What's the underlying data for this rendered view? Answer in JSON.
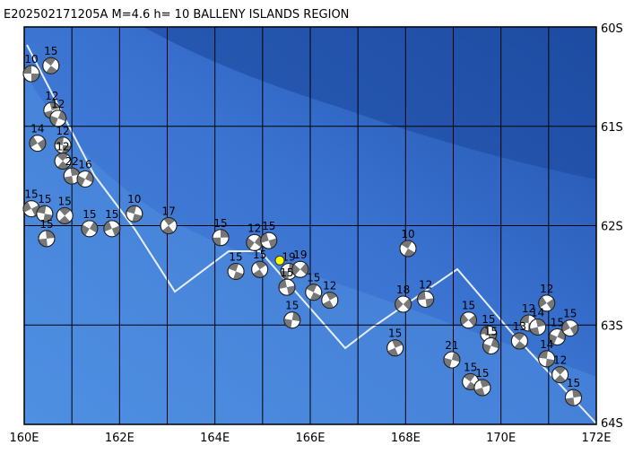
{
  "title": "E202502171205A M=4.6 h= 10 BALLENY ISLANDS REGION",
  "map": {
    "lonlim": [
      160,
      172
    ],
    "latlim": [
      60,
      64
    ],
    "lonticks": [
      {
        "value": 160,
        "label": "160E"
      },
      {
        "value": 162,
        "label": "162E"
      },
      {
        "value": 164,
        "label": "164E"
      },
      {
        "value": 166,
        "label": "166E"
      },
      {
        "value": 168,
        "label": "168E"
      },
      {
        "value": 170,
        "label": "170E"
      },
      {
        "value": 172,
        "label": "172E"
      }
    ],
    "latticks": [
      {
        "value": 60,
        "label": "60S"
      },
      {
        "value": 61,
        "label": "61S"
      },
      {
        "value": 62,
        "label": "62S"
      },
      {
        "value": 63,
        "label": "63S"
      },
      {
        "value": 64,
        "label": "64S"
      }
    ],
    "grid_lon": [
      161,
      163,
      165,
      167,
      169,
      171
    ],
    "events": [
      {
        "lon": 160.15,
        "lat": 60.47,
        "depth": "10"
      },
      {
        "lon": 160.56,
        "lat": 60.39,
        "depth": "15"
      },
      {
        "lon": 160.58,
        "lat": 60.84,
        "depth": "12"
      },
      {
        "lon": 160.71,
        "lat": 60.92,
        "depth": "12"
      },
      {
        "lon": 160.28,
        "lat": 61.17,
        "depth": "14"
      },
      {
        "lon": 160.81,
        "lat": 61.19,
        "depth": "12"
      },
      {
        "lon": 160.81,
        "lat": 61.35,
        "depth": "12"
      },
      {
        "lon": 161.0,
        "lat": 61.5,
        "depth": "22"
      },
      {
        "lon": 161.28,
        "lat": 61.53,
        "depth": "16"
      },
      {
        "lon": 160.15,
        "lat": 61.83,
        "depth": "15"
      },
      {
        "lon": 160.43,
        "lat": 61.88,
        "depth": "15"
      },
      {
        "lon": 160.85,
        "lat": 61.9,
        "depth": "15"
      },
      {
        "lon": 160.47,
        "lat": 62.13,
        "depth": "15"
      },
      {
        "lon": 161.37,
        "lat": 62.03,
        "depth": "15"
      },
      {
        "lon": 161.84,
        "lat": 62.03,
        "depth": "15"
      },
      {
        "lon": 162.31,
        "lat": 61.88,
        "depth": "10"
      },
      {
        "lon": 163.03,
        "lat": 62.0,
        "depth": "17"
      },
      {
        "lon": 164.12,
        "lat": 62.12,
        "depth": "15"
      },
      {
        "lon": 164.83,
        "lat": 62.17,
        "depth": "12"
      },
      {
        "lon": 165.13,
        "lat": 62.15,
        "depth": "15"
      },
      {
        "lon": 164.44,
        "lat": 62.46,
        "depth": "15"
      },
      {
        "lon": 164.94,
        "lat": 62.44,
        "depth": "15"
      },
      {
        "lon": 165.55,
        "lat": 62.46,
        "depth": "19"
      },
      {
        "lon": 165.79,
        "lat": 62.44,
        "depth": "19"
      },
      {
        "lon": 165.51,
        "lat": 62.62,
        "depth": "15"
      },
      {
        "lon": 166.07,
        "lat": 62.67,
        "depth": "15"
      },
      {
        "lon": 166.41,
        "lat": 62.75,
        "depth": "12"
      },
      {
        "lon": 165.62,
        "lat": 62.95,
        "depth": "15"
      },
      {
        "lon": 167.95,
        "lat": 62.79,
        "depth": "18"
      },
      {
        "lon": 168.42,
        "lat": 62.74,
        "depth": "12"
      },
      {
        "lon": 168.05,
        "lat": 62.23,
        "depth": "10"
      },
      {
        "lon": 167.78,
        "lat": 63.23,
        "depth": "15"
      },
      {
        "lon": 168.97,
        "lat": 63.35,
        "depth": "21"
      },
      {
        "lon": 169.32,
        "lat": 62.95,
        "depth": "15"
      },
      {
        "lon": 169.74,
        "lat": 63.09,
        "depth": "15"
      },
      {
        "lon": 169.36,
        "lat": 63.57,
        "depth": "15"
      },
      {
        "lon": 169.61,
        "lat": 63.63,
        "depth": "15"
      },
      {
        "lon": 169.79,
        "lat": 63.21,
        "depth": "15"
      },
      {
        "lon": 170.96,
        "lat": 62.78,
        "depth": "12"
      },
      {
        "lon": 170.58,
        "lat": 62.98,
        "depth": "12"
      },
      {
        "lon": 170.39,
        "lat": 63.16,
        "depth": "13"
      },
      {
        "lon": 170.77,
        "lat": 63.02,
        "depth": "14"
      },
      {
        "lon": 171.18,
        "lat": 63.12,
        "depth": "15"
      },
      {
        "lon": 171.45,
        "lat": 63.03,
        "depth": "15"
      },
      {
        "lon": 170.96,
        "lat": 63.34,
        "depth": "14"
      },
      {
        "lon": 171.24,
        "lat": 63.5,
        "depth": "12"
      },
      {
        "lon": 171.52,
        "lat": 63.73,
        "depth": "15"
      },
      {
        "lon": 165.36,
        "lat": 62.35,
        "depth": "10",
        "highlight": true
      }
    ]
  }
}
